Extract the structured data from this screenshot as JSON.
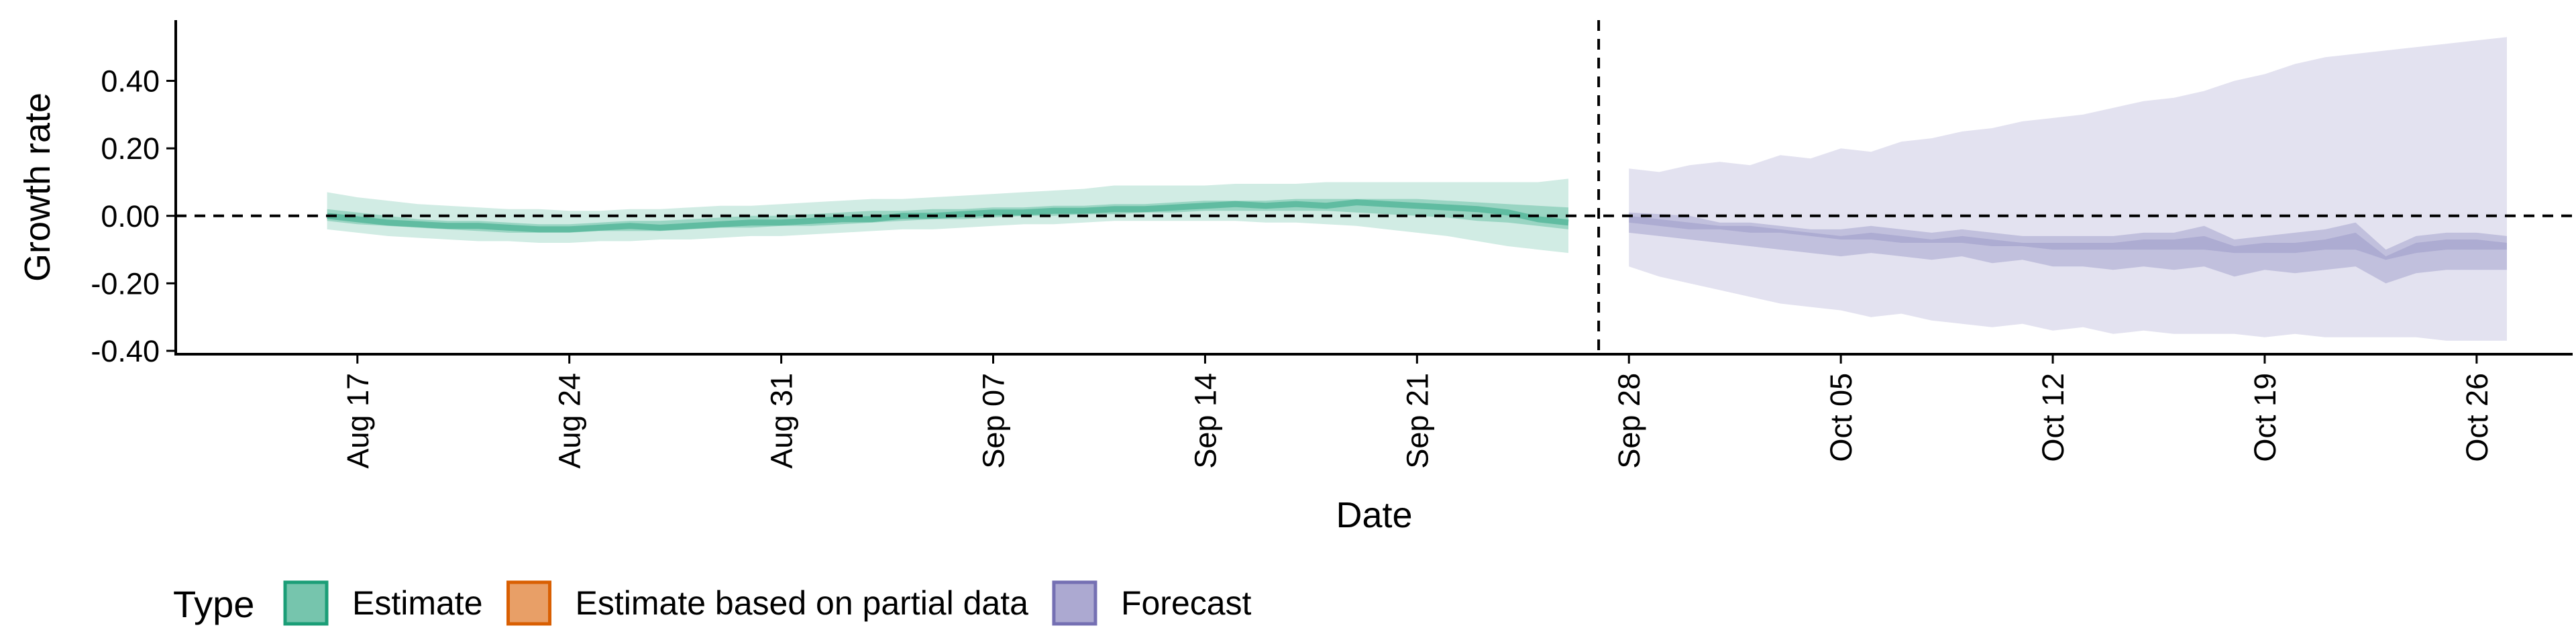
{
  "chart_data": {
    "type": "area",
    "xlabel": "Date",
    "ylabel": "Growth rate",
    "x_ticks": [
      "Aug 17",
      "Aug 24",
      "Aug 31",
      "Sep 07",
      "Sep 14",
      "Sep 21",
      "Sep 28",
      "Oct 05",
      "Oct 12",
      "Oct 19",
      "Oct 26"
    ],
    "y_ticks": [
      "-0.40",
      "-0.20",
      "0.00",
      "0.20",
      "0.40"
    ],
    "ylim": [
      -0.41,
      0.58
    ],
    "xlim": [
      "2020-08-11",
      "2020-10-30"
    ],
    "grid": false,
    "reference_lines": {
      "horizontal_y": 0.0,
      "vertical_x": "2020-09-27"
    },
    "legend": {
      "title": "Type",
      "position": "bottom",
      "entries": [
        {
          "label": "Estimate",
          "color": "#1b9e77"
        },
        {
          "label": "Estimate based on partial data",
          "color": "#d95f02"
        },
        {
          "label": "Forecast",
          "color": "#7570b3"
        }
      ]
    },
    "series": [
      {
        "name": "Estimate",
        "color": "#1b9e77",
        "x": [
          "2020-08-16",
          "2020-08-17",
          "2020-08-18",
          "2020-08-19",
          "2020-08-20",
          "2020-08-21",
          "2020-08-22",
          "2020-08-23",
          "2020-08-24",
          "2020-08-25",
          "2020-08-26",
          "2020-08-27",
          "2020-08-28",
          "2020-08-29",
          "2020-08-30",
          "2020-08-31",
          "2020-09-01",
          "2020-09-02",
          "2020-09-03",
          "2020-09-04",
          "2020-09-05",
          "2020-09-06",
          "2020-09-07",
          "2020-09-08",
          "2020-09-09",
          "2020-09-10",
          "2020-09-11",
          "2020-09-12",
          "2020-09-13",
          "2020-09-14",
          "2020-09-15",
          "2020-09-16",
          "2020-09-17",
          "2020-09-18",
          "2020-09-19",
          "2020-09-20",
          "2020-09-21",
          "2020-09-22",
          "2020-09-23",
          "2020-09-24",
          "2020-09-25",
          "2020-09-26"
        ],
        "median": [
          0.0,
          -0.01,
          -0.02,
          -0.025,
          -0.03,
          -0.03,
          -0.035,
          -0.04,
          -0.04,
          -0.035,
          -0.03,
          -0.035,
          -0.03,
          -0.025,
          -0.02,
          -0.02,
          -0.015,
          -0.01,
          -0.01,
          0.0,
          0.0,
          0.005,
          0.01,
          0.01,
          0.015,
          0.015,
          0.02,
          0.02,
          0.025,
          0.03,
          0.035,
          0.03,
          0.035,
          0.03,
          0.04,
          0.035,
          0.03,
          0.025,
          0.02,
          0.01,
          -0.01,
          -0.02
        ],
        "lower_50": [
          -0.015,
          -0.025,
          -0.03,
          -0.035,
          -0.04,
          -0.045,
          -0.05,
          -0.05,
          -0.05,
          -0.045,
          -0.045,
          -0.045,
          -0.04,
          -0.035,
          -0.035,
          -0.03,
          -0.03,
          -0.025,
          -0.02,
          -0.015,
          -0.01,
          -0.01,
          -0.005,
          0.0,
          0.0,
          0.005,
          0.005,
          0.01,
          0.01,
          0.015,
          0.015,
          0.015,
          0.015,
          0.015,
          0.01,
          0.005,
          0.0,
          -0.005,
          -0.015,
          -0.02,
          -0.03,
          -0.04
        ],
        "upper_50": [
          0.02,
          0.01,
          0.0,
          -0.01,
          -0.015,
          -0.015,
          -0.02,
          -0.025,
          -0.025,
          -0.02,
          -0.015,
          -0.015,
          -0.01,
          -0.005,
          0.0,
          0.0,
          0.005,
          0.01,
          0.015,
          0.015,
          0.02,
          0.02,
          0.025,
          0.025,
          0.03,
          0.03,
          0.035,
          0.035,
          0.04,
          0.045,
          0.045,
          0.045,
          0.05,
          0.05,
          0.05,
          0.05,
          0.05,
          0.045,
          0.04,
          0.035,
          0.03,
          0.025
        ],
        "lower_90": [
          -0.04,
          -0.05,
          -0.06,
          -0.065,
          -0.07,
          -0.075,
          -0.075,
          -0.08,
          -0.08,
          -0.075,
          -0.075,
          -0.07,
          -0.07,
          -0.065,
          -0.06,
          -0.06,
          -0.055,
          -0.05,
          -0.045,
          -0.04,
          -0.04,
          -0.035,
          -0.03,
          -0.025,
          -0.025,
          -0.02,
          -0.015,
          -0.015,
          -0.015,
          -0.015,
          -0.015,
          -0.02,
          -0.02,
          -0.025,
          -0.03,
          -0.04,
          -0.05,
          -0.06,
          -0.075,
          -0.09,
          -0.1,
          -0.11
        ],
        "upper_90": [
          0.07,
          0.055,
          0.045,
          0.035,
          0.03,
          0.025,
          0.02,
          0.02,
          0.015,
          0.015,
          0.02,
          0.02,
          0.025,
          0.03,
          0.03,
          0.035,
          0.04,
          0.045,
          0.05,
          0.05,
          0.055,
          0.06,
          0.065,
          0.07,
          0.075,
          0.08,
          0.09,
          0.09,
          0.09,
          0.09,
          0.095,
          0.095,
          0.095,
          0.1,
          0.1,
          0.1,
          0.1,
          0.1,
          0.1,
          0.1,
          0.1,
          0.11
        ]
      },
      {
        "name": "Forecast",
        "color": "#7570b3",
        "x": [
          "2020-09-28",
          "2020-09-29",
          "2020-09-30",
          "2020-10-01",
          "2020-10-02",
          "2020-10-03",
          "2020-10-04",
          "2020-10-05",
          "2020-10-06",
          "2020-10-07",
          "2020-10-08",
          "2020-10-09",
          "2020-10-10",
          "2020-10-11",
          "2020-10-12",
          "2020-10-13",
          "2020-10-14",
          "2020-10-15",
          "2020-10-16",
          "2020-10-17",
          "2020-10-18",
          "2020-10-19",
          "2020-10-20",
          "2020-10-21",
          "2020-10-22",
          "2020-10-23",
          "2020-10-24",
          "2020-10-25",
          "2020-10-26",
          "2020-10-27"
        ],
        "lower_50": [
          -0.05,
          -0.06,
          -0.07,
          -0.08,
          -0.09,
          -0.1,
          -0.11,
          -0.12,
          -0.11,
          -0.12,
          -0.13,
          -0.12,
          -0.14,
          -0.13,
          -0.15,
          -0.15,
          -0.16,
          -0.15,
          -0.16,
          -0.15,
          -0.18,
          -0.16,
          -0.17,
          -0.16,
          -0.15,
          -0.2,
          -0.17,
          -0.16,
          -0.16,
          -0.16
        ],
        "upper_50": [
          0.01,
          0.005,
          0.0,
          -0.02,
          -0.02,
          -0.03,
          -0.04,
          -0.04,
          -0.03,
          -0.04,
          -0.05,
          -0.04,
          -0.05,
          -0.06,
          -0.06,
          -0.06,
          -0.06,
          -0.05,
          -0.05,
          -0.03,
          -0.07,
          -0.06,
          -0.05,
          -0.04,
          -0.02,
          -0.1,
          -0.06,
          -0.05,
          -0.05,
          -0.06
        ],
        "lower_90": [
          -0.15,
          -0.18,
          -0.2,
          -0.22,
          -0.24,
          -0.26,
          -0.27,
          -0.28,
          -0.3,
          -0.29,
          -0.31,
          -0.32,
          -0.33,
          -0.32,
          -0.34,
          -0.33,
          -0.35,
          -0.34,
          -0.35,
          -0.35,
          -0.35,
          -0.36,
          -0.35,
          -0.36,
          -0.36,
          -0.36,
          -0.36,
          -0.37,
          -0.37,
          -0.37
        ],
        "upper_90": [
          0.14,
          0.13,
          0.15,
          0.16,
          0.15,
          0.18,
          0.17,
          0.2,
          0.19,
          0.22,
          0.23,
          0.25,
          0.26,
          0.28,
          0.29,
          0.3,
          0.32,
          0.34,
          0.35,
          0.37,
          0.4,
          0.42,
          0.45,
          0.47,
          0.48,
          0.49,
          0.5,
          0.51,
          0.52,
          0.53
        ],
        "inner_lower": [
          -0.02,
          -0.03,
          -0.04,
          -0.04,
          -0.05,
          -0.05,
          -0.06,
          -0.07,
          -0.07,
          -0.08,
          -0.08,
          -0.08,
          -0.09,
          -0.09,
          -0.1,
          -0.1,
          -0.1,
          -0.1,
          -0.1,
          -0.1,
          -0.11,
          -0.11,
          -0.11,
          -0.1,
          -0.1,
          -0.13,
          -0.11,
          -0.1,
          -0.1,
          -0.1
        ],
        "inner_upper": [
          0.0,
          -0.01,
          -0.02,
          -0.03,
          -0.03,
          -0.04,
          -0.05,
          -0.06,
          -0.05,
          -0.06,
          -0.07,
          -0.06,
          -0.07,
          -0.08,
          -0.08,
          -0.08,
          -0.08,
          -0.07,
          -0.07,
          -0.06,
          -0.09,
          -0.08,
          -0.08,
          -0.07,
          -0.05,
          -0.12,
          -0.08,
          -0.07,
          -0.07,
          -0.08
        ]
      }
    ]
  }
}
